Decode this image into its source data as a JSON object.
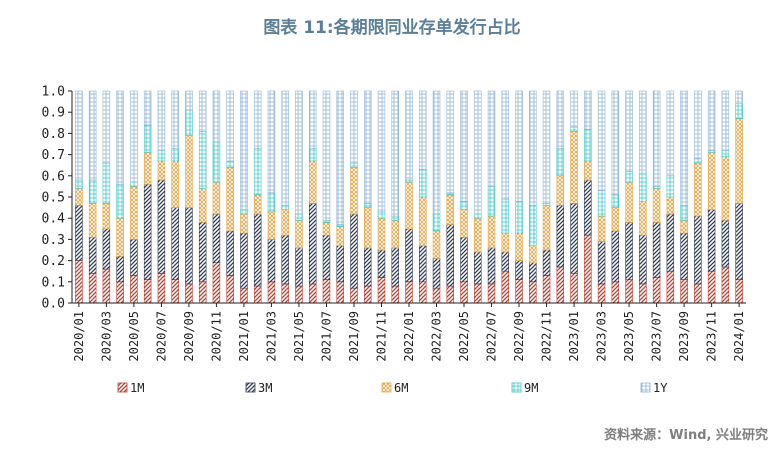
{
  "title": "图表 11:各期限同业存单发行占比",
  "source": "资料来源：Wind, 兴业研究",
  "chart_data": {
    "type": "bar",
    "stacked": true,
    "ylim": [
      0,
      1.0
    ],
    "yticks": [
      "0.0",
      "0.1",
      "0.2",
      "0.3",
      "0.4",
      "0.5",
      "0.6",
      "0.7",
      "0.8",
      "0.9",
      "1.0"
    ],
    "grid": false,
    "legend_position": "bottom",
    "tick_labels": [
      "2020/01",
      "2020/03",
      "2020/05",
      "2020/07",
      "2020/09",
      "2020/11",
      "2021/01",
      "2021/03",
      "2021/05",
      "2021/07",
      "2021/09",
      "2021/11",
      "2022/01",
      "2022/03",
      "2022/05",
      "2022/07",
      "2022/09",
      "2022/11",
      "2023/01",
      "2023/03",
      "2023/05",
      "2023/07",
      "2023/09",
      "2023/11",
      "2024/01"
    ],
    "categories": [
      "2020/01",
      "2020/02",
      "2020/03",
      "2020/04",
      "2020/05",
      "2020/06",
      "2020/07",
      "2020/08",
      "2020/09",
      "2020/10",
      "2020/11",
      "2020/12",
      "2021/01",
      "2021/02",
      "2021/03",
      "2021/04",
      "2021/05",
      "2021/06",
      "2021/07",
      "2021/08",
      "2021/09",
      "2021/10",
      "2021/11",
      "2021/12",
      "2022/01",
      "2022/02",
      "2022/03",
      "2022/04",
      "2022/05",
      "2022/06",
      "2022/07",
      "2022/08",
      "2022/09",
      "2022/10",
      "2022/11",
      "2022/12",
      "2023/01",
      "2023/02",
      "2023/03",
      "2023/04",
      "2023/05",
      "2023/06",
      "2023/07",
      "2023/08",
      "2023/09",
      "2023/10",
      "2023/11",
      "2023/12",
      "2024/01"
    ],
    "series": [
      {
        "name": "1M",
        "color": "#c0392b",
        "values": [
          0.2,
          0.14,
          0.16,
          0.1,
          0.13,
          0.11,
          0.14,
          0.11,
          0.09,
          0.1,
          0.19,
          0.13,
          0.07,
          0.08,
          0.1,
          0.09,
          0.08,
          0.09,
          0.11,
          0.1,
          0.07,
          0.08,
          0.12,
          0.08,
          0.1,
          0.1,
          0.07,
          0.08,
          0.1,
          0.09,
          0.09,
          0.15,
          0.11,
          0.1,
          0.13,
          0.17,
          0.14,
          0.32,
          0.09,
          0.1,
          0.11,
          0.09,
          0.12,
          0.15,
          0.11,
          0.09,
          0.15,
          0.17,
          0.11
        ]
      },
      {
        "name": "3M",
        "color": "#2f3b57",
        "values": [
          0.26,
          0.17,
          0.19,
          0.12,
          0.17,
          0.45,
          0.44,
          0.34,
          0.36,
          0.28,
          0.23,
          0.21,
          0.26,
          0.34,
          0.2,
          0.23,
          0.18,
          0.38,
          0.21,
          0.17,
          0.35,
          0.18,
          0.13,
          0.18,
          0.25,
          0.17,
          0.14,
          0.29,
          0.21,
          0.15,
          0.17,
          0.09,
          0.09,
          0.09,
          0.12,
          0.29,
          0.33,
          0.26,
          0.2,
          0.24,
          0.27,
          0.23,
          0.26,
          0.27,
          0.22,
          0.32,
          0.29,
          0.22,
          0.36
        ]
      },
      {
        "name": "6M",
        "color": "#e8a33d",
        "values": [
          0.08,
          0.16,
          0.12,
          0.18,
          0.25,
          0.15,
          0.09,
          0.22,
          0.34,
          0.16,
          0.15,
          0.3,
          0.09,
          0.09,
          0.13,
          0.12,
          0.13,
          0.2,
          0.06,
          0.09,
          0.22,
          0.19,
          0.15,
          0.13,
          0.22,
          0.23,
          0.13,
          0.14,
          0.13,
          0.16,
          0.15,
          0.09,
          0.13,
          0.08,
          0.21,
          0.14,
          0.34,
          0.09,
          0.12,
          0.11,
          0.19,
          0.16,
          0.16,
          0.08,
          0.06,
          0.25,
          0.27,
          0.3,
          0.4
        ]
      },
      {
        "name": "9M",
        "color": "#3cc6c6",
        "values": [
          0.04,
          0.11,
          0.19,
          0.16,
          0.02,
          0.13,
          0.05,
          0.06,
          0.12,
          0.27,
          0.19,
          0.03,
          0.02,
          0.22,
          0.09,
          0.02,
          0.03,
          0.06,
          0.01,
          0.01,
          0.02,
          0.02,
          0.03,
          0.02,
          0.01,
          0.13,
          0.08,
          0.01,
          0.04,
          0.02,
          0.14,
          0.16,
          0.15,
          0.19,
          0.01,
          0.13,
          0.02,
          0.15,
          0.12,
          0.06,
          0.05,
          0.13,
          0.01,
          0.1,
          0.07,
          0.02,
          0.01,
          0.03,
          0.07
        ]
      },
      {
        "name": "1Y",
        "color": "#8fb4d4",
        "values": [
          0.42,
          0.42,
          0.34,
          0.44,
          0.43,
          0.16,
          0.28,
          0.27,
          0.09,
          0.19,
          0.24,
          0.33,
          0.56,
          0.27,
          0.48,
          0.54,
          0.58,
          0.27,
          0.61,
          0.63,
          0.34,
          0.53,
          0.57,
          0.59,
          0.42,
          0.37,
          0.58,
          0.48,
          0.52,
          0.58,
          0.45,
          0.51,
          0.52,
          0.54,
          0.53,
          0.27,
          0.17,
          0.18,
          0.47,
          0.49,
          0.38,
          0.39,
          0.45,
          0.4,
          0.54,
          0.32,
          0.28,
          0.28,
          0.06
        ]
      }
    ]
  }
}
